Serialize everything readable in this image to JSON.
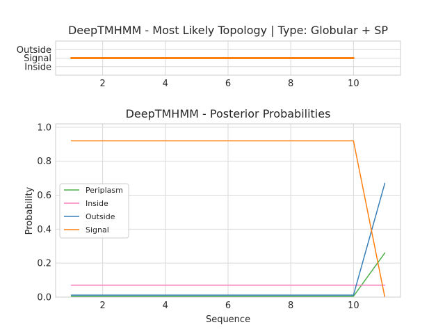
{
  "chart_data": [
    {
      "type": "line",
      "title": "DeepTMHMM - Most Likely Topology | Type: Globular + SP",
      "xlabel": "",
      "ylabel": "",
      "xlim": [
        0.5,
        11.5
      ],
      "ylim": [
        -0.5,
        1.5
      ],
      "xticks": [
        2,
        4,
        6,
        8,
        10
      ],
      "yticks": [
        {
          "value": 0,
          "label": "Inside"
        },
        {
          "value": 0.5,
          "label": "Signal"
        },
        {
          "value": 1,
          "label": "Outside"
        }
      ],
      "grid": true,
      "series": [
        {
          "color": "#ff7f0e",
          "x": [
            1,
            2,
            3,
            4,
            5,
            6,
            7,
            8,
            9,
            10
          ],
          "y": [
            0.5,
            0.5,
            0.5,
            0.5,
            0.5,
            0.5,
            0.5,
            0.5,
            0.5,
            0.5
          ]
        }
      ]
    },
    {
      "type": "line",
      "title": "DeepTMHMM - Posterior Probabilities",
      "xlabel": "Sequence",
      "ylabel": "Probability",
      "xlim": [
        0.5,
        11.5
      ],
      "ylim": [
        0,
        1.02
      ],
      "xticks": [
        2,
        4,
        6,
        8,
        10
      ],
      "yticks": [
        {
          "value": 0,
          "label": "0.0"
        },
        {
          "value": 0.2,
          "label": "0.2"
        },
        {
          "value": 0.4,
          "label": "0.4"
        },
        {
          "value": 0.6,
          "label": "0.6"
        },
        {
          "value": 0.8,
          "label": "0.8"
        },
        {
          "value": 1.0,
          "label": "1.0"
        }
      ],
      "grid": true,
      "legend": "center-left",
      "series": [
        {
          "name": "Periplasm",
          "color": "#4daf4a",
          "x": [
            1,
            2,
            3,
            4,
            5,
            6,
            7,
            8,
            9,
            10,
            11
          ],
          "y": [
            0.005,
            0.005,
            0.005,
            0.005,
            0.005,
            0.005,
            0.005,
            0.005,
            0.005,
            0.005,
            0.26
          ]
        },
        {
          "name": "Inside",
          "color": "#f781bf",
          "x": [
            1,
            2,
            3,
            4,
            5,
            6,
            7,
            8,
            9,
            10,
            11
          ],
          "y": [
            0.07,
            0.07,
            0.07,
            0.07,
            0.07,
            0.07,
            0.07,
            0.07,
            0.07,
            0.07,
            0.07
          ]
        },
        {
          "name": "Outside",
          "color": "#377eb8",
          "x": [
            1,
            2,
            3,
            4,
            5,
            6,
            7,
            8,
            9,
            10,
            11
          ],
          "y": [
            0.012,
            0.012,
            0.012,
            0.012,
            0.012,
            0.012,
            0.012,
            0.012,
            0.012,
            0.012,
            0.67
          ]
        },
        {
          "name": "Signal",
          "color": "#ff7f0e",
          "x": [
            1,
            2,
            3,
            4,
            5,
            6,
            7,
            8,
            9,
            10,
            11
          ],
          "y": [
            0.92,
            0.92,
            0.92,
            0.92,
            0.92,
            0.92,
            0.92,
            0.92,
            0.92,
            0.92,
            0.0
          ]
        }
      ]
    }
  ]
}
